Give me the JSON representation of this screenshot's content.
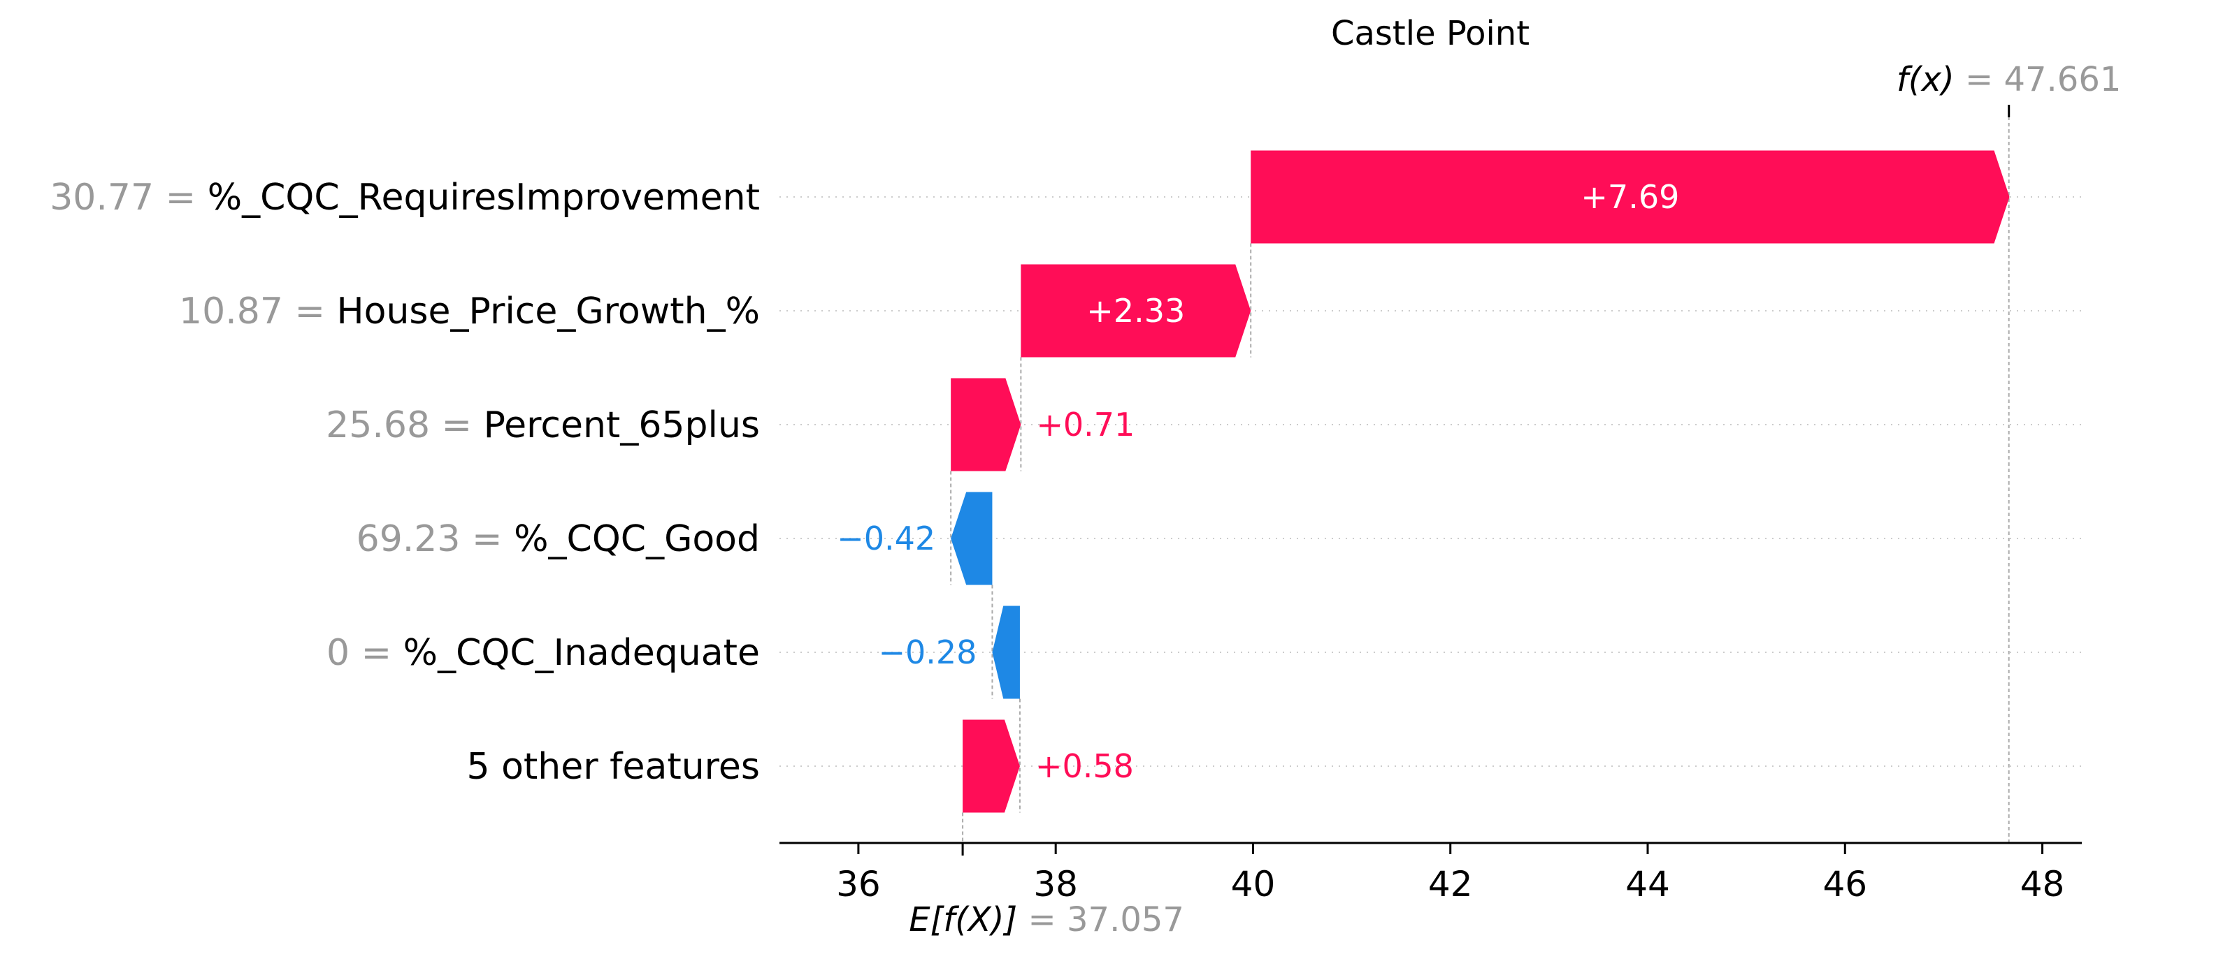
{
  "chart_data": {
    "type": "waterfall",
    "title": "Castle Point",
    "xlim": [
      35.2,
      48.4
    ],
    "ticks": [
      36,
      38,
      40,
      42,
      44,
      46,
      48
    ],
    "tick_labels": [
      "36",
      "38",
      "40",
      "42",
      "44",
      "46",
      "48"
    ],
    "base_value": 37.057,
    "output_value": 47.661,
    "base_label": {
      "expr": "E[f(X)]",
      "eq": " = ",
      "value": "37.057"
    },
    "output_label": {
      "expr": "f(x)",
      "eq": " = ",
      "value": "47.661"
    },
    "features": [
      {
        "value_text": "30.77 = ",
        "name": "%_CQC_RequiresImprovement",
        "shap": 7.69,
        "label": "+7.69"
      },
      {
        "value_text": "10.87 = ",
        "name": "House_Price_Growth_%",
        "shap": 2.33,
        "label": "+2.33"
      },
      {
        "value_text": "25.68 = ",
        "name": "Percent_65plus",
        "shap": 0.71,
        "label": "+0.71"
      },
      {
        "value_text": "69.23 = ",
        "name": "%_CQC_Good",
        "shap": -0.42,
        "label": "−0.42"
      },
      {
        "value_text": "0 = ",
        "name": "%_CQC_Inadequate",
        "shap": -0.28,
        "label": "−0.28"
      },
      {
        "value_text": "",
        "name": "5 other features",
        "shap": 0.58,
        "label": "+0.58"
      }
    ],
    "colors": {
      "positive": "#ff0d57",
      "negative": "#1e88e5",
      "axis": "#000000",
      "muted": "#999999",
      "grid": "#cccccc"
    }
  }
}
